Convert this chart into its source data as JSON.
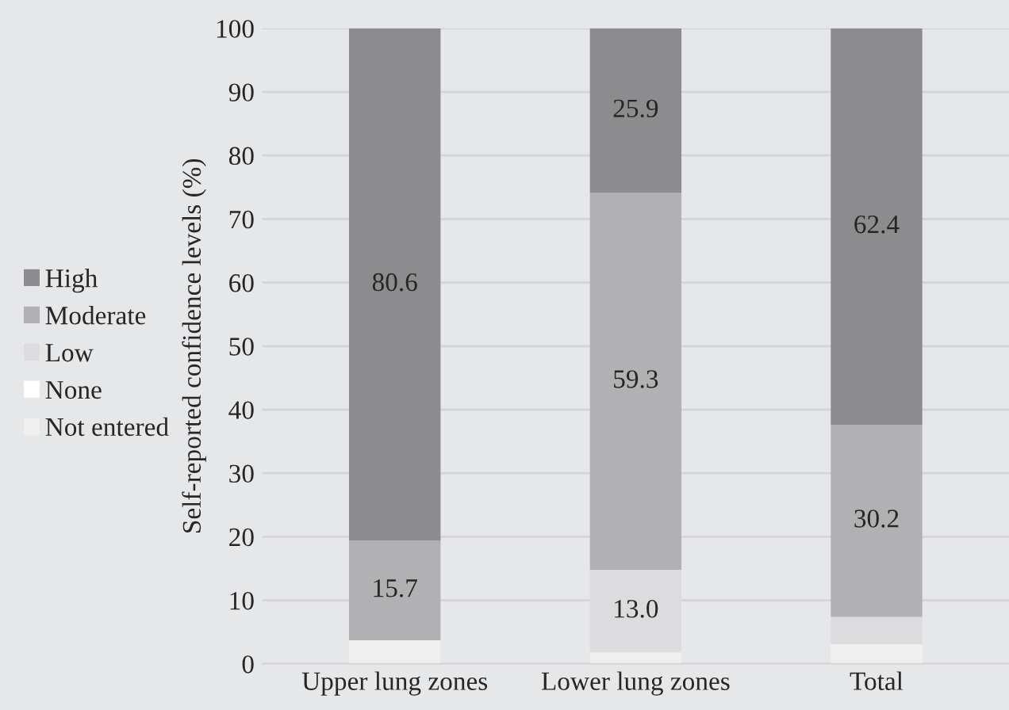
{
  "chart_data": {
    "type": "bar",
    "stacked": true,
    "ylabel": "Self-reported confidence levels (%)",
    "categories": [
      "Upper lung zones",
      "Lower lung zones",
      "Total"
    ],
    "series": [
      {
        "name": "Not entered",
        "color": "#efefef",
        "values": [
          3.7,
          1.8,
          3.1
        ]
      },
      {
        "name": "None",
        "color": "#ffffff",
        "values": [
          0,
          0,
          0
        ]
      },
      {
        "name": "Low",
        "color": "#dcdcde",
        "values": [
          0,
          13.0,
          4.3
        ],
        "value_labels": [
          null,
          "13.0",
          null
        ]
      },
      {
        "name": "Moderate",
        "color": "#b1b1b3",
        "values": [
          15.7,
          59.3,
          30.2
        ],
        "value_labels": [
          "15.7",
          "59.3",
          "30.2"
        ]
      },
      {
        "name": "High",
        "color": "#8c8c8e",
        "values": [
          80.6,
          25.9,
          62.4
        ],
        "value_labels": [
          "80.6",
          "25.9",
          "62.4"
        ]
      }
    ],
    "ylim": [
      0,
      100
    ],
    "yticks": [
      0,
      10,
      20,
      30,
      40,
      50,
      60,
      70,
      80,
      90,
      100
    ],
    "grid": "y",
    "legend": "left"
  }
}
